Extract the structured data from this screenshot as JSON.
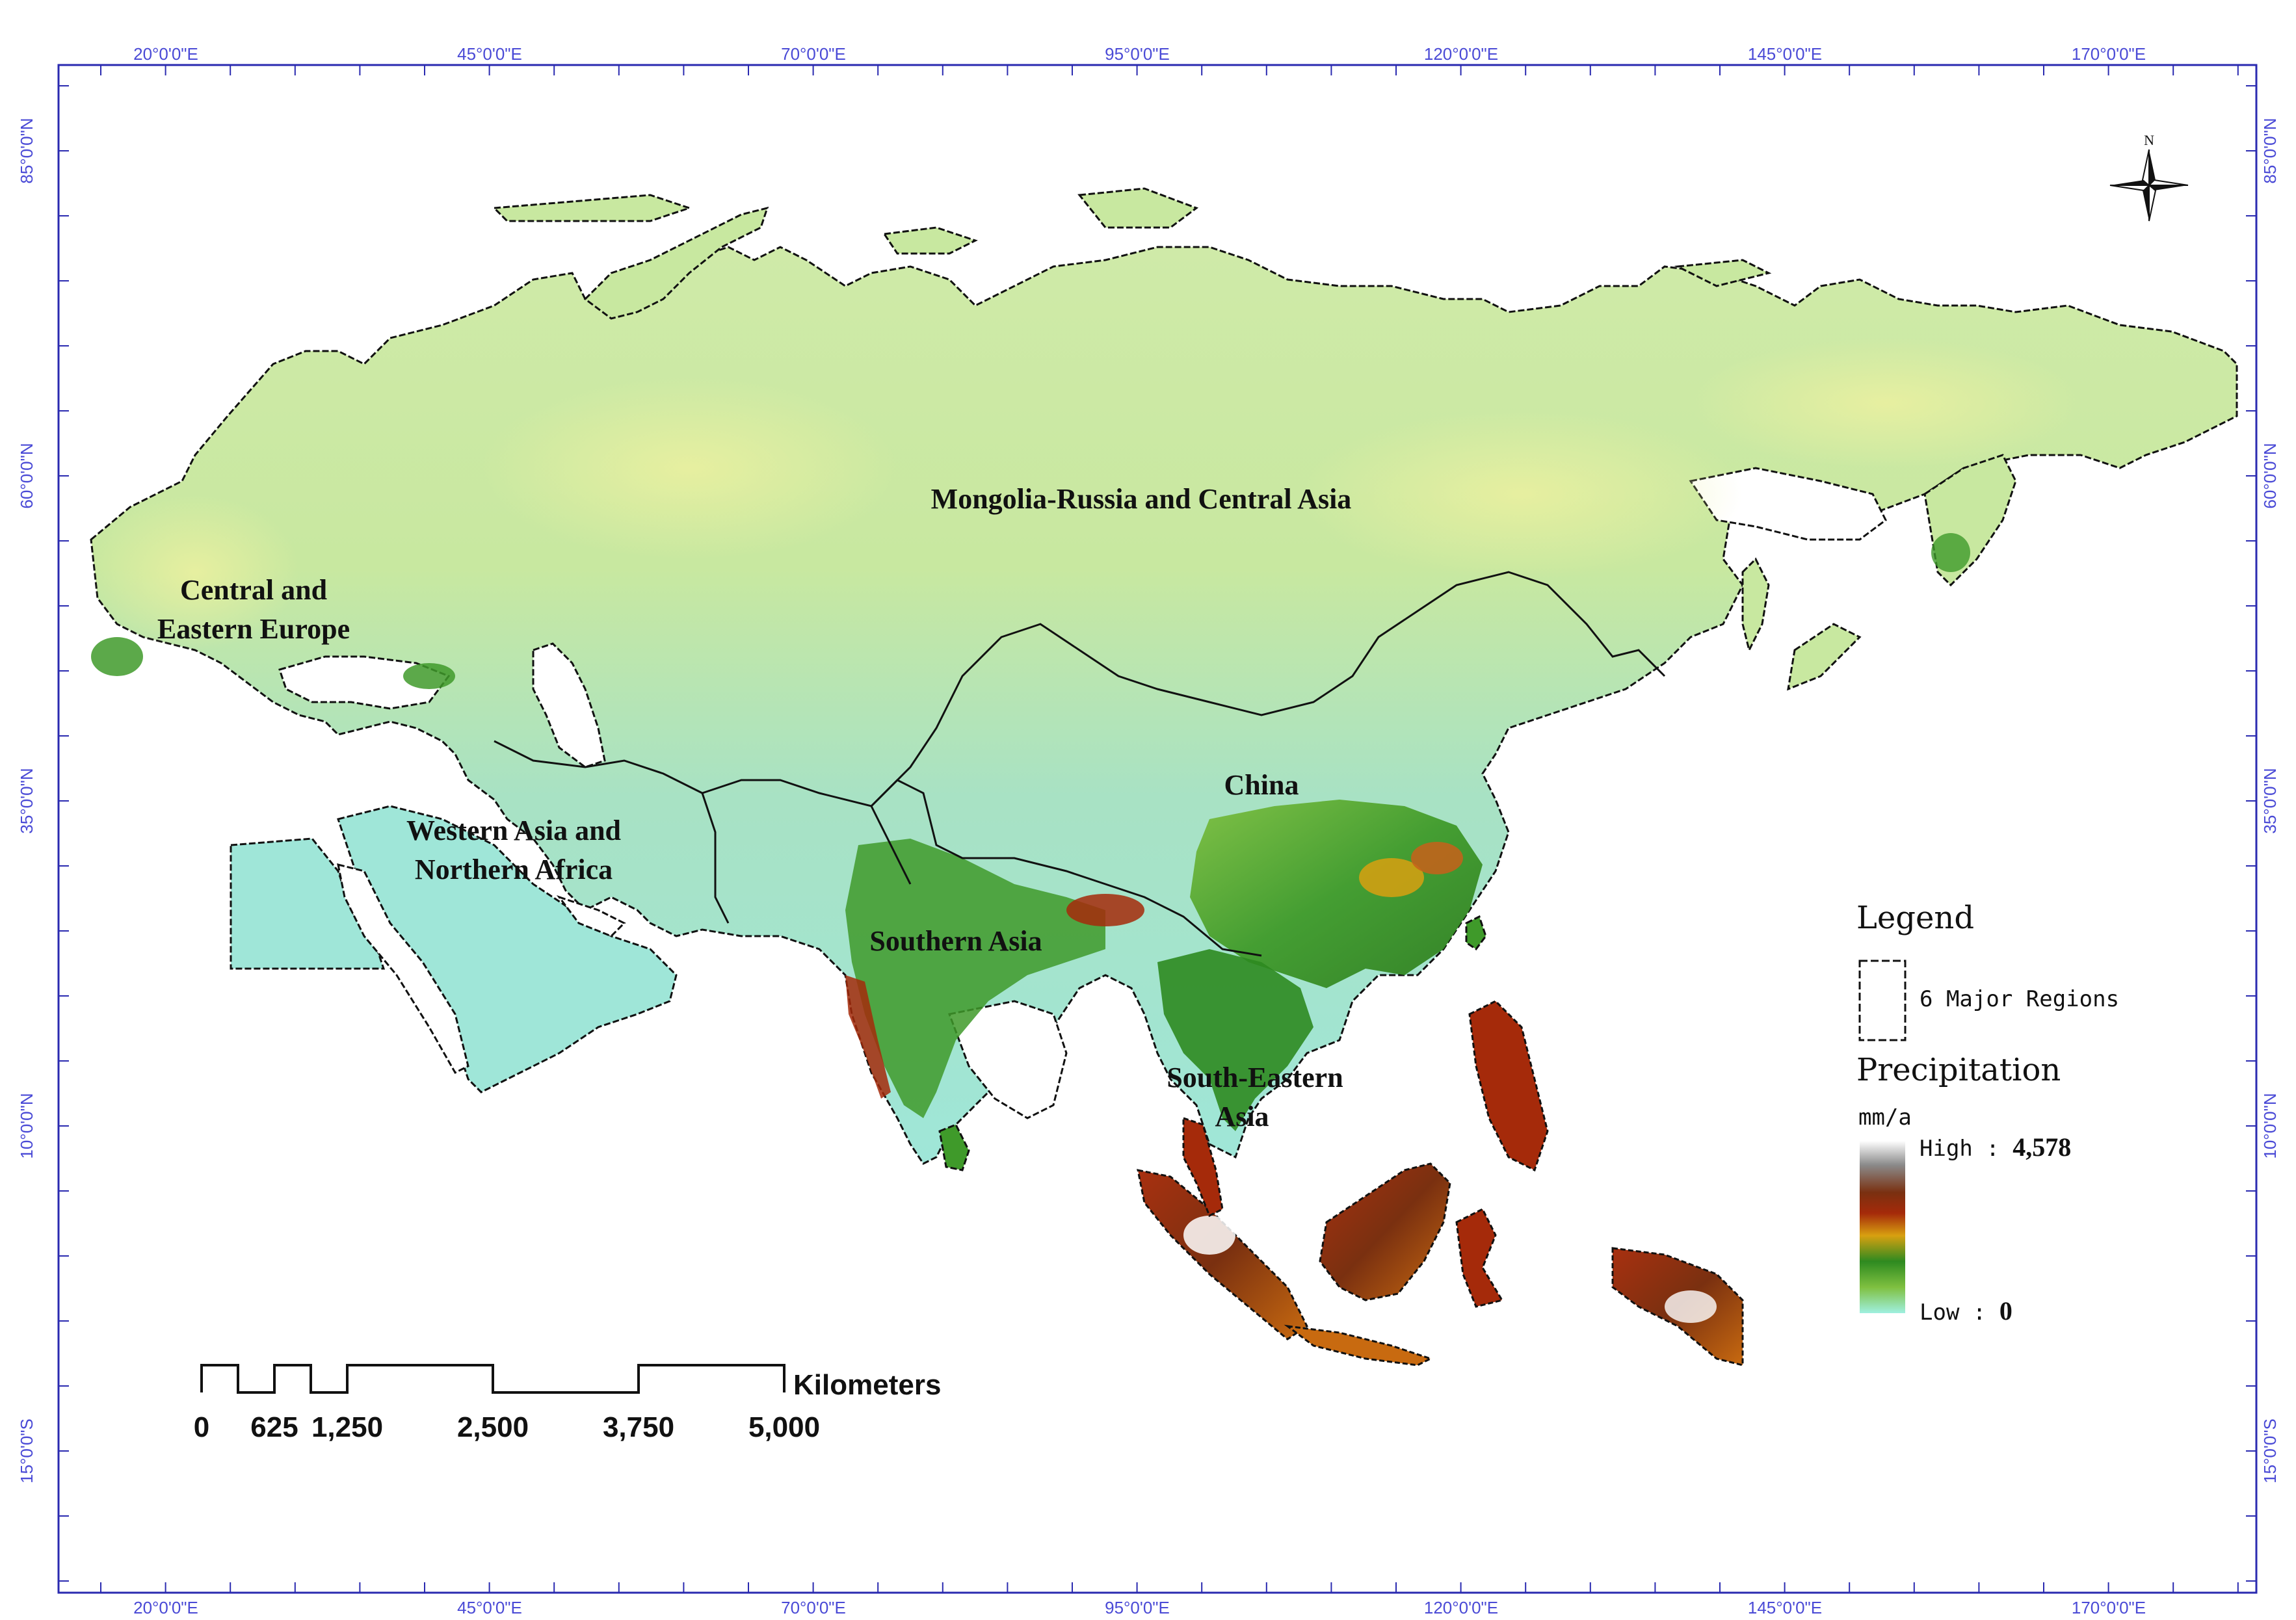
{
  "map": {
    "top_axis": [
      "20°0'0\"E",
      "45°0'0\"E",
      "70°0'0\"E",
      "95°0'0\"E",
      "120°0'0\"E",
      "145°0'0\"E",
      "170°0'0\"E"
    ],
    "bottom_axis": [
      "20°0'0\"E",
      "45°0'0\"E",
      "70°0'0\"E",
      "95°0'0\"E",
      "120°0'0\"E",
      "145°0'0\"E",
      "170°0'0\"E"
    ],
    "left_axis": [
      "85°0'0\"N",
      "60°0'0\"N",
      "35°0'0\"N",
      "10°0'0\"N",
      "15°0'0\"S"
    ],
    "right_axis": [
      "85°0'0\"N",
      "60°0'0\"N",
      "35°0'0\"N",
      "10°0'0\"N",
      "15°0'0\"S"
    ],
    "regions": {
      "mongolia_russia": "Mongolia-Russia and Central Asia",
      "central_europe_line1": "Central and",
      "central_europe_line2": "Eastern Europe",
      "western_asia_line1": "Western Asia and",
      "western_asia_line2": "Northern Africa",
      "china": "China",
      "southern_asia": "Southern Asia",
      "south_eastern_line1": "South-Eastern",
      "south_eastern_line2": "Asia"
    },
    "north_label": "N",
    "colors": {
      "ocean": "#ffffff",
      "border": "#111111",
      "axis_label": "#4a4ad6",
      "frame": "#2a2ab0"
    }
  },
  "legend": {
    "title": "Legend",
    "regions_label": "6 Major Regions",
    "precipitation_title": "Precipitation",
    "unit": "mm/a",
    "high_label": "High : ",
    "high_value": "4,578",
    "low_label": "Low : ",
    "low_value": "0",
    "gradient_colors": [
      "#ffffff",
      "#8a8a8a",
      "#7a3010",
      "#a52a0a",
      "#d8a010",
      "#2e8a20",
      "#7fc040",
      "#9ff0e0"
    ]
  },
  "scale_bar": {
    "unit": "Kilometers",
    "ticks": [
      "0",
      "625",
      "1,250",
      "2,500",
      "3,750",
      "5,000"
    ]
  }
}
